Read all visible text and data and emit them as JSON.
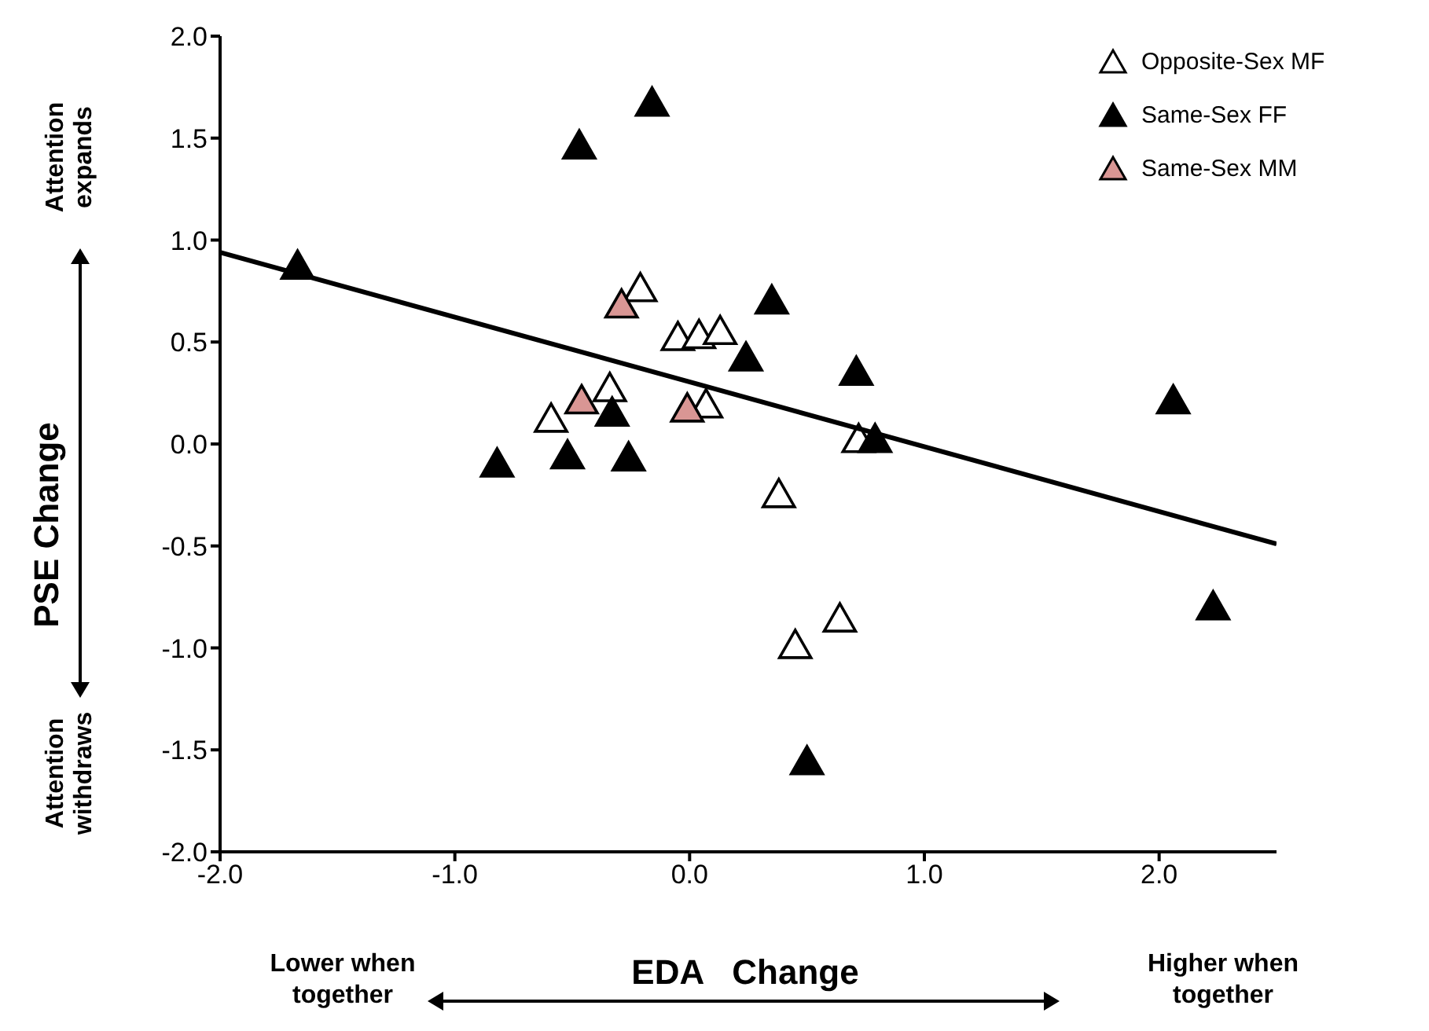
{
  "chart_data": {
    "type": "scatter",
    "xlabel": "EDA   Change",
    "ylabel": "PSE Change",
    "annotations": [
      "Attention expands",
      "Attention withdraws",
      "Lower when together",
      "Higher when together"
    ],
    "xlim": [
      -2.0,
      2.5
    ],
    "ylim": [
      -2.0,
      2.0
    ],
    "xticks": [
      {
        "value": -2,
        "label": "-2.0"
      },
      {
        "value": -1,
        "label": "-1.0"
      },
      {
        "value": 0,
        "label": "0.0"
      },
      {
        "value": 1,
        "label": "1.0"
      },
      {
        "value": 2,
        "label": "2.0"
      }
    ],
    "yticks": [
      {
        "value": -2,
        "label": "-2.0"
      },
      {
        "value": -1.5,
        "label": "-1.5"
      },
      {
        "value": -1,
        "label": "-1.0"
      },
      {
        "value": -0.5,
        "label": "-0.5"
      },
      {
        "value": 0,
        "label": "0.0"
      },
      {
        "value": 0.5,
        "label": "0.5"
      },
      {
        "value": 1,
        "label": "1.0"
      },
      {
        "value": 1.5,
        "label": "1.5"
      },
      {
        "value": 2,
        "label": "2.0"
      }
    ],
    "legend": "top right",
    "marker": "triangle",
    "series": [
      {
        "name": "Opposite-Sex MF",
        "color": "#ffffff",
        "x": [
          -0.21,
          -0.05,
          0.04,
          0.13,
          -0.34,
          0.07,
          0.72,
          0.38,
          0.64,
          0.45,
          -0.59
        ],
        "values": [
          0.76,
          0.52,
          0.53,
          0.55,
          0.27,
          0.19,
          0.02,
          -0.25,
          -0.86,
          -0.99,
          0.12
        ]
      },
      {
        "name": "Same-Sex FF",
        "color": "#000000",
        "x": [
          -1.67,
          -0.47,
          -0.16,
          0.35,
          0.24,
          0.71,
          -0.33,
          -0.26,
          0.79,
          0.5,
          2.06,
          2.23,
          -0.82,
          -0.52
        ],
        "values": [
          0.87,
          1.46,
          1.67,
          0.7,
          0.42,
          0.35,
          0.15,
          -0.07,
          0.02,
          -1.56,
          0.21,
          -0.8,
          -0.1,
          -0.06
        ]
      },
      {
        "name": "Same-Sex MM",
        "color": "#d99694",
        "x": [
          -0.29,
          -0.01,
          -0.46
        ],
        "values": [
          0.68,
          0.17,
          0.21
        ]
      },
      {
        "type": "line",
        "color": "#000000",
        "marker": "none",
        "x": [
          -2.0,
          2.5
        ],
        "values": [
          0.94,
          -0.49
        ]
      }
    ]
  }
}
